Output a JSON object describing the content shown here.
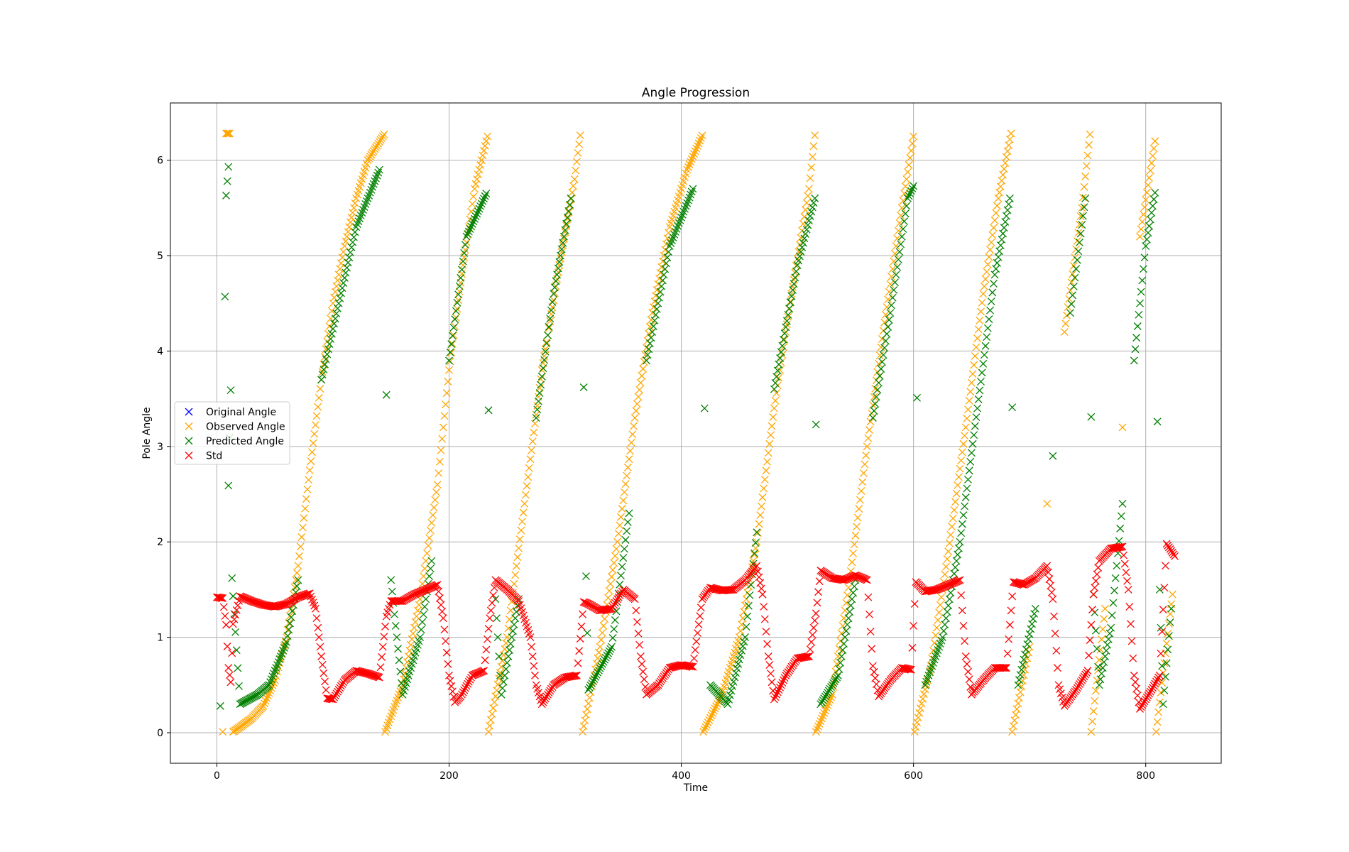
{
  "chart_data": {
    "type": "scatter",
    "title": "Angle Progression",
    "xlabel": "Time",
    "ylabel": "Pole Angle",
    "xlim": [
      -40,
      865
    ],
    "ylim": [
      -0.32,
      6.6
    ],
    "xticks": [
      0,
      200,
      400,
      600,
      800
    ],
    "yticks": [
      0,
      1,
      2,
      3,
      4,
      5,
      6
    ],
    "grid": true,
    "legend_position": "center-left",
    "marker": "x",
    "colors": {
      "original": "#0000ff",
      "observed": "#ffa500",
      "predicted": "#008000",
      "std": "#ff0000"
    },
    "series": [
      {
        "name": "Original Angle",
        "color": "#0000ff",
        "segments": [],
        "note": "Hidden beneath Observed Angle markers"
      },
      {
        "name": "Observed Angle",
        "color": "#ffa500",
        "points_sparse": [
          [
            5,
            0.01
          ],
          [
            8,
            6.28
          ],
          [
            11,
            6.28
          ],
          [
            14,
            0.01
          ],
          [
            20,
            0.06
          ],
          [
            30,
            0.15
          ],
          [
            40,
            0.28
          ],
          [
            50,
            0.55
          ],
          [
            60,
            1.0
          ],
          [
            70,
            1.75
          ],
          [
            80,
            2.75
          ],
          [
            90,
            3.7
          ],
          [
            100,
            4.5
          ],
          [
            110,
            5.1
          ],
          [
            120,
            5.6
          ],
          [
            130,
            6.0
          ],
          [
            144,
            6.27
          ],
          [
            145,
            0.01
          ],
          [
            160,
            0.5
          ],
          [
            175,
            1.4
          ],
          [
            190,
            2.6
          ],
          [
            200,
            3.8
          ],
          [
            212,
            4.9
          ],
          [
            222,
            5.7
          ],
          [
            233,
            6.25
          ],
          [
            234,
            0.01
          ],
          [
            250,
            1.0
          ],
          [
            265,
            2.4
          ],
          [
            280,
            3.8
          ],
          [
            295,
            4.9
          ],
          [
            308,
            5.8
          ],
          [
            313,
            6.26
          ],
          [
            315,
            0.01
          ],
          [
            330,
            0.9
          ],
          [
            345,
            2.0
          ],
          [
            360,
            3.3
          ],
          [
            375,
            4.4
          ],
          [
            390,
            5.3
          ],
          [
            405,
            5.9
          ],
          [
            418,
            6.26
          ],
          [
            419,
            0.01
          ],
          [
            435,
            0.4
          ],
          [
            450,
            1.0
          ],
          [
            465,
            2.0
          ],
          [
            480,
            3.4
          ],
          [
            495,
            4.6
          ],
          [
            510,
            5.7
          ],
          [
            515,
            6.26
          ],
          [
            516,
            0.01
          ],
          [
            530,
            0.4
          ],
          [
            545,
            1.6
          ],
          [
            560,
            3.0
          ],
          [
            575,
            4.3
          ],
          [
            590,
            5.5
          ],
          [
            600,
            6.25
          ],
          [
            601,
            0.01
          ],
          [
            615,
            0.7
          ],
          [
            630,
            1.9
          ],
          [
            645,
            3.2
          ],
          [
            660,
            4.6
          ],
          [
            673,
            5.6
          ],
          [
            684,
            6.28
          ],
          [
            685,
            0.01
          ],
          [
            700,
            0.9
          ],
          [
            715,
            2.4
          ],
          [
            730,
            4.2
          ],
          [
            745,
            5.5
          ],
          [
            752,
            6.27
          ],
          [
            753,
            0.01
          ],
          [
            765,
            1.3
          ],
          [
            780,
            3.2
          ],
          [
            795,
            5.2
          ],
          [
            808,
            6.2
          ],
          [
            809,
            0.01
          ],
          [
            823,
            1.45
          ]
        ]
      },
      {
        "name": "Predicted Angle",
        "color": "#008000",
        "points_sparse": [
          [
            3,
            0.28
          ],
          [
            7,
            4.57
          ],
          [
            8,
            5.63
          ],
          [
            10,
            5.93
          ],
          [
            10,
            2.59
          ],
          [
            12,
            3.59
          ],
          [
            13,
            1.62
          ],
          [
            20,
            0.3
          ],
          [
            35,
            0.4
          ],
          [
            45,
            0.5
          ],
          [
            60,
            0.95
          ],
          [
            70,
            1.6
          ],
          [
            90,
            3.7
          ],
          [
            105,
            4.5
          ],
          [
            120,
            5.3
          ],
          [
            140,
            5.9
          ],
          [
            146,
            3.54
          ],
          [
            150,
            1.6
          ],
          [
            160,
            0.4
          ],
          [
            175,
            1.0
          ],
          [
            185,
            1.8
          ],
          [
            200,
            3.9
          ],
          [
            215,
            5.2
          ],
          [
            232,
            5.65
          ],
          [
            234,
            3.38
          ],
          [
            240,
            1.4
          ],
          [
            245,
            0.4
          ],
          [
            260,
            1.4
          ],
          [
            275,
            3.3
          ],
          [
            290,
            4.6
          ],
          [
            305,
            5.6
          ],
          [
            316,
            3.62
          ],
          [
            318,
            1.64
          ],
          [
            320,
            0.45
          ],
          [
            340,
            0.9
          ],
          [
            355,
            2.3
          ],
          [
            370,
            3.9
          ],
          [
            390,
            5.1
          ],
          [
            410,
            5.7
          ],
          [
            420,
            3.4
          ],
          [
            425,
            0.5
          ],
          [
            440,
            0.3
          ],
          [
            455,
            1.0
          ],
          [
            465,
            2.1
          ],
          [
            480,
            3.6
          ],
          [
            500,
            4.9
          ],
          [
            515,
            5.6
          ],
          [
            516,
            3.23
          ],
          [
            520,
            0.3
          ],
          [
            535,
            0.6
          ],
          [
            550,
            1.6
          ],
          [
            565,
            3.3
          ],
          [
            580,
            4.4
          ],
          [
            595,
            5.6
          ],
          [
            600,
            5.73
          ],
          [
            603,
            3.51
          ],
          [
            610,
            0.5
          ],
          [
            625,
            1.0
          ],
          [
            640,
            2.0
          ],
          [
            655,
            3.4
          ],
          [
            670,
            4.8
          ],
          [
            683,
            5.6
          ],
          [
            685,
            3.41
          ],
          [
            690,
            0.5
          ],
          [
            705,
            1.3
          ],
          [
            720,
            2.9
          ],
          [
            735,
            4.4
          ],
          [
            748,
            5.6
          ],
          [
            753,
            3.31
          ],
          [
            755,
            1.45
          ],
          [
            760,
            0.5
          ],
          [
            770,
            1.1
          ],
          [
            780,
            2.4
          ],
          [
            790,
            3.9
          ],
          [
            800,
            5.1
          ],
          [
            808,
            5.66
          ],
          [
            810,
            3.26
          ],
          [
            812,
            1.5
          ],
          [
            815,
            0.3
          ],
          [
            822,
            1.3
          ]
        ]
      },
      {
        "name": "Std",
        "color": "#ff0000",
        "points_sparse": [
          [
            0,
            1.42
          ],
          [
            5,
            1.41
          ],
          [
            8,
            1.13
          ],
          [
            10,
            0.68
          ],
          [
            12,
            0.53
          ],
          [
            14,
            1.14
          ],
          [
            20,
            1.43
          ],
          [
            30,
            1.38
          ],
          [
            40,
            1.34
          ],
          [
            50,
            1.32
          ],
          [
            60,
            1.35
          ],
          [
            70,
            1.42
          ],
          [
            80,
            1.46
          ],
          [
            85,
            1.3
          ],
          [
            90,
            0.8
          ],
          [
            95,
            0.36
          ],
          [
            100,
            0.35
          ],
          [
            110,
            0.55
          ],
          [
            120,
            0.65
          ],
          [
            130,
            0.62
          ],
          [
            140,
            0.58
          ],
          [
            146,
            1.22
          ],
          [
            150,
            1.38
          ],
          [
            160,
            1.38
          ],
          [
            170,
            1.45
          ],
          [
            180,
            1.5
          ],
          [
            190,
            1.55
          ],
          [
            195,
            1.2
          ],
          [
            200,
            0.6
          ],
          [
            205,
            0.32
          ],
          [
            210,
            0.38
          ],
          [
            220,
            0.6
          ],
          [
            230,
            0.65
          ],
          [
            235,
            1.2
          ],
          [
            240,
            1.6
          ],
          [
            250,
            1.5
          ],
          [
            260,
            1.38
          ],
          [
            270,
            1.0
          ],
          [
            275,
            0.5
          ],
          [
            280,
            0.3
          ],
          [
            290,
            0.5
          ],
          [
            300,
            0.58
          ],
          [
            310,
            0.6
          ],
          [
            316,
            1.37
          ],
          [
            320,
            1.35
          ],
          [
            330,
            1.28
          ],
          [
            340,
            1.3
          ],
          [
            350,
            1.5
          ],
          [
            360,
            1.4
          ],
          [
            365,
            0.8
          ],
          [
            370,
            0.4
          ],
          [
            380,
            0.5
          ],
          [
            390,
            0.68
          ],
          [
            400,
            0.71
          ],
          [
            410,
            0.69
          ],
          [
            418,
            1.4
          ],
          [
            425,
            1.52
          ],
          [
            435,
            1.49
          ],
          [
            445,
            1.5
          ],
          [
            455,
            1.6
          ],
          [
            465,
            1.75
          ],
          [
            470,
            1.45
          ],
          [
            475,
            0.8
          ],
          [
            480,
            0.35
          ],
          [
            490,
            0.6
          ],
          [
            500,
            0.78
          ],
          [
            510,
            0.8
          ],
          [
            516,
            1.25
          ],
          [
            520,
            1.7
          ],
          [
            530,
            1.62
          ],
          [
            540,
            1.6
          ],
          [
            550,
            1.65
          ],
          [
            560,
            1.6
          ],
          [
            565,
            0.7
          ],
          [
            570,
            0.38
          ],
          [
            580,
            0.55
          ],
          [
            590,
            0.68
          ],
          [
            598,
            0.66
          ],
          [
            602,
            1.58
          ],
          [
            610,
            1.48
          ],
          [
            620,
            1.5
          ],
          [
            630,
            1.55
          ],
          [
            640,
            1.6
          ],
          [
            645,
            0.8
          ],
          [
            650,
            0.4
          ],
          [
            660,
            0.55
          ],
          [
            670,
            0.68
          ],
          [
            680,
            0.68
          ],
          [
            686,
            1.58
          ],
          [
            695,
            1.55
          ],
          [
            705,
            1.62
          ],
          [
            715,
            1.75
          ],
          [
            720,
            1.4
          ],
          [
            725,
            0.5
          ],
          [
            730,
            0.28
          ],
          [
            740,
            0.45
          ],
          [
            750,
            0.65
          ],
          [
            755,
            1.45
          ],
          [
            760,
            1.8
          ],
          [
            770,
            1.93
          ],
          [
            780,
            1.95
          ],
          [
            785,
            1.5
          ],
          [
            790,
            0.6
          ],
          [
            795,
            0.25
          ],
          [
            805,
            0.45
          ],
          [
            812,
            0.6
          ],
          [
            818,
            1.98
          ],
          [
            825,
            1.85
          ]
        ]
      }
    ]
  }
}
